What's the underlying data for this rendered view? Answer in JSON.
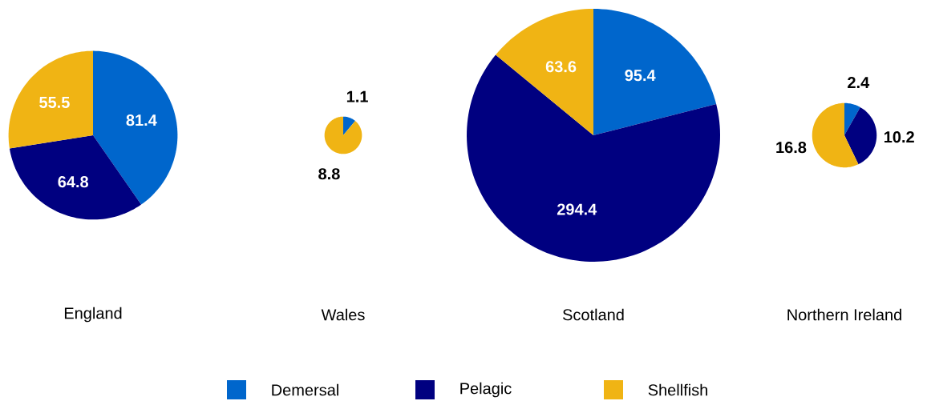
{
  "chart_data": [
    {
      "type": "pie",
      "xlabel": "England",
      "categories": [
        "Demersal",
        "Pelagic",
        "Shellfish"
      ],
      "values": [
        81.4,
        64.8,
        55.5
      ],
      "colors": [
        "#0066cc",
        "#000080",
        "#f0b414"
      ],
      "data_labels": true,
      "legend": "bottom"
    },
    {
      "type": "pie",
      "xlabel": "Wales",
      "values": [
        1.1,
        null,
        8.8
      ],
      "colors": [
        "#0066cc",
        "#000080",
        "#f0b414"
      ],
      "data_labels": true
    },
    {
      "type": "pie",
      "xlabel": "Scotland",
      "values": [
        95.4,
        294.4,
        63.6
      ],
      "colors": [
        "#0066cc",
        "#000080",
        "#f0b414"
      ],
      "data_labels": true
    },
    {
      "type": "pie",
      "xlabel": "Northern Ireland",
      "values": [
        2.4,
        10.2,
        16.8
      ],
      "colors": [
        "#0066cc",
        "#000080",
        "#f0b414"
      ],
      "data_labels": true
    }
  ]
}
